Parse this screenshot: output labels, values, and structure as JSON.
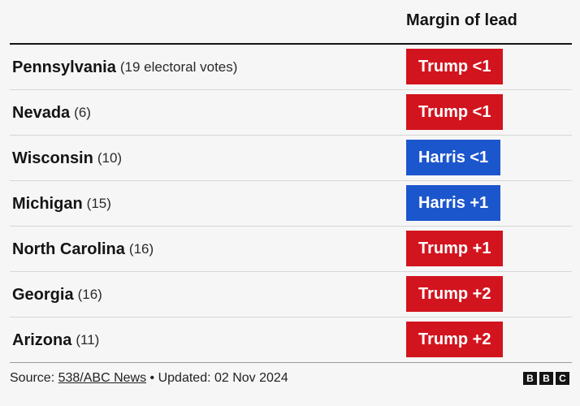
{
  "colors": {
    "trump": "#d2141e",
    "harris": "#1c56cd"
  },
  "header": {
    "column_title": "Margin of lead"
  },
  "chart_data": {
    "type": "table",
    "columns": [
      "",
      "Margin of lead"
    ],
    "rows": [
      {
        "state": "Pennsylvania",
        "votes": "(19 electoral votes)",
        "lead": "Trump <1",
        "leader": "trump"
      },
      {
        "state": "Nevada",
        "votes": "(6)",
        "lead": "Trump <1",
        "leader": "trump"
      },
      {
        "state": "Wisconsin",
        "votes": "(10)",
        "lead": "Harris <1",
        "leader": "harris"
      },
      {
        "state": "Michigan",
        "votes": "(15)",
        "lead": "Harris +1",
        "leader": "harris"
      },
      {
        "state": "North Carolina",
        "votes": "(16)",
        "lead": "Trump +1",
        "leader": "trump"
      },
      {
        "state": "Georgia",
        "votes": "(16)",
        "lead": "Trump +2",
        "leader": "trump"
      },
      {
        "state": "Arizona",
        "votes": "(11)",
        "lead": "Trump +2",
        "leader": "trump"
      }
    ]
  },
  "footer": {
    "source_label": "Source:",
    "source_link": "538/ABC News",
    "updated": "• Updated: 02 Nov 2024",
    "logo_letters": [
      "B",
      "B",
      "C"
    ]
  }
}
